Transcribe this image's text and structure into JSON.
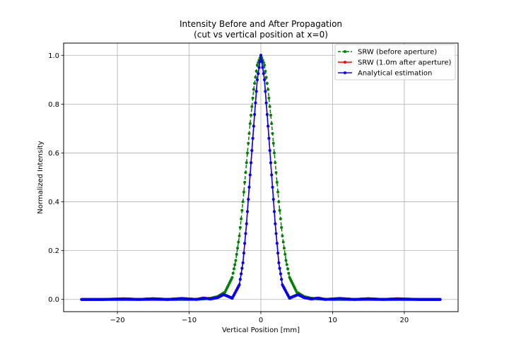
{
  "chart_data": {
    "type": "line",
    "title": "Intensity Before and After Propagation",
    "subtitle": "(cut vs vertical position at x=0)",
    "xlabel": "Vertical Position [mm]",
    "ylabel": "Normalized Intensity",
    "xlim": [
      -27.5,
      27.5
    ],
    "ylim": [
      -0.05,
      1.05
    ],
    "xticks": [
      -20,
      -10,
      0,
      10,
      20
    ],
    "xtick_labels": [
      "−20",
      "−10",
      "0",
      "10",
      "20"
    ],
    "yticks": [
      0.0,
      0.2,
      0.4,
      0.6,
      0.8,
      1.0
    ],
    "ytick_labels": [
      "0.0",
      "0.2",
      "0.4",
      "0.6",
      "0.8",
      "1.0"
    ],
    "grid": true,
    "legend_position": "top-right",
    "series": [
      {
        "name": "SRW (before aperture)",
        "color": "#008000",
        "linestyle": "dashed",
        "marker": "dot",
        "x": [
          -25,
          -20,
          -15,
          -10,
          -8,
          -7,
          -6,
          -5,
          -4,
          -3.5,
          -3,
          -2.5,
          -2,
          -1.5,
          -1,
          -0.5,
          0,
          0.5,
          1,
          1.5,
          2,
          2.5,
          3,
          3.5,
          4,
          5,
          6,
          7,
          8,
          10,
          15,
          20,
          25
        ],
        "y": [
          0.0,
          0.0,
          0.0,
          0.0,
          0.002,
          0.005,
          0.012,
          0.03,
          0.09,
          0.16,
          0.26,
          0.4,
          0.56,
          0.72,
          0.86,
          0.96,
          1.0,
          0.96,
          0.86,
          0.72,
          0.56,
          0.4,
          0.26,
          0.16,
          0.09,
          0.03,
          0.012,
          0.005,
          0.002,
          0.0,
          0.0,
          0.0,
          0.0
        ]
      },
      {
        "name": "SRW (1.0m after aperture)",
        "color": "#ff0000",
        "linestyle": "solid",
        "marker": "dot",
        "x": [
          -25,
          -22,
          -19,
          -17,
          -15,
          -13,
          -11,
          -9,
          -8,
          -7,
          -6,
          -5.2,
          -4.5,
          -4,
          -3,
          -2.5,
          -2,
          -1.5,
          -1,
          -0.5,
          0,
          0.5,
          1,
          1.5,
          2,
          2.5,
          3,
          4,
          4.5,
          5.2,
          6,
          7,
          8,
          9,
          11,
          13,
          15,
          17,
          19,
          22,
          25
        ],
        "y": [
          0.0,
          0.0,
          0.003,
          0.0,
          0.003,
          0.0,
          0.004,
          0.0,
          0.006,
          0.002,
          0.008,
          0.02,
          0.012,
          0.005,
          0.06,
          0.15,
          0.31,
          0.51,
          0.71,
          0.9,
          1.0,
          0.9,
          0.71,
          0.51,
          0.31,
          0.15,
          0.06,
          0.005,
          0.012,
          0.02,
          0.008,
          0.002,
          0.006,
          0.0,
          0.004,
          0.0,
          0.003,
          0.0,
          0.003,
          0.0,
          0.0
        ]
      },
      {
        "name": "Analytical estimation",
        "color": "#0000ff",
        "linestyle": "solid",
        "marker": "dot",
        "x": [
          -25,
          -22,
          -19,
          -17,
          -15,
          -13,
          -11,
          -9,
          -8,
          -7,
          -6,
          -5.2,
          -4.5,
          -4,
          -3,
          -2.5,
          -2,
          -1.5,
          -1,
          -0.5,
          0,
          0.5,
          1,
          1.5,
          2,
          2.5,
          3,
          4,
          4.5,
          5.2,
          6,
          7,
          8,
          9,
          11,
          13,
          15,
          17,
          19,
          22,
          25
        ],
        "y": [
          0.0,
          0.0,
          0.002,
          0.0,
          0.003,
          0.0,
          0.004,
          0.0,
          0.005,
          0.002,
          0.008,
          0.02,
          0.012,
          0.005,
          0.06,
          0.15,
          0.31,
          0.51,
          0.71,
          0.9,
          1.0,
          0.9,
          0.71,
          0.51,
          0.31,
          0.15,
          0.06,
          0.005,
          0.012,
          0.02,
          0.008,
          0.002,
          0.005,
          0.0,
          0.004,
          0.0,
          0.003,
          0.0,
          0.002,
          0.0,
          0.0
        ]
      }
    ]
  }
}
